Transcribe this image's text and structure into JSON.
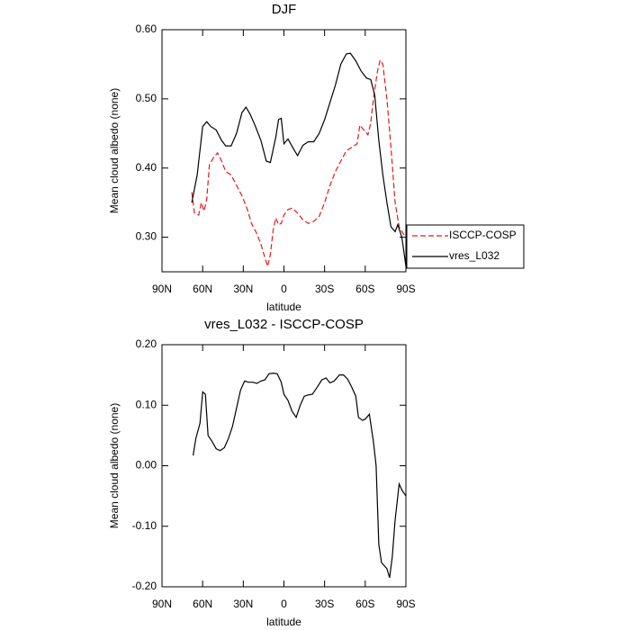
{
  "chart_data": [
    {
      "type": "line",
      "title": "DJF",
      "xlabel": "latitude",
      "ylabel": "Mean cloud albedo (none)",
      "xlim": [
        90,
        -90
      ],
      "ylim": [
        0.25,
        0.6
      ],
      "xticks": [
        {
          "value": 90,
          "label": "90N"
        },
        {
          "value": 60,
          "label": "60N"
        },
        {
          "value": 30,
          "label": "30N"
        },
        0,
        {
          "value": -30,
          "label": "30S"
        },
        {
          "value": -60,
          "label": "60S"
        },
        {
          "value": -90,
          "label": "90S"
        }
      ],
      "yticks": [
        {
          "value": 0.3,
          "label": "0.30"
        },
        {
          "value": 0.4,
          "label": "0.40"
        },
        {
          "value": 0.5,
          "label": "0.50"
        },
        {
          "value": 0.6,
          "label": "0.60"
        }
      ],
      "series": [
        {
          "name": "ISCCP-COSP",
          "color": "#e41a1c",
          "dashed": true,
          "x": [
            68,
            66,
            63,
            61,
            59,
            57,
            55,
            52,
            49,
            46,
            43,
            39,
            35,
            31,
            27,
            24,
            20,
            17,
            14,
            12,
            10,
            8,
            6,
            4,
            2,
            0,
            -3,
            -6,
            -10,
            -14,
            -18,
            -22,
            -26,
            -30,
            -34,
            -38,
            -42,
            -46,
            -50,
            -54,
            -56,
            -59,
            -62,
            -64,
            -66,
            -69,
            -71,
            -73,
            -76,
            -79,
            -82,
            -85,
            -88,
            -90
          ],
          "values": [
            0.365,
            0.335,
            0.332,
            0.35,
            0.338,
            0.355,
            0.405,
            0.415,
            0.422,
            0.41,
            0.395,
            0.39,
            0.375,
            0.36,
            0.34,
            0.32,
            0.305,
            0.29,
            0.27,
            0.258,
            0.275,
            0.31,
            0.328,
            0.318,
            0.32,
            0.332,
            0.34,
            0.342,
            0.335,
            0.325,
            0.32,
            0.323,
            0.33,
            0.35,
            0.375,
            0.395,
            0.41,
            0.425,
            0.43,
            0.435,
            0.462,
            0.455,
            0.448,
            0.465,
            0.5,
            0.54,
            0.556,
            0.55,
            0.5,
            0.43,
            0.35,
            0.315,
            0.305,
            0.3
          ]
        },
        {
          "name": "vres_L032",
          "color": "#000000",
          "dashed": false,
          "x": [
            68,
            64,
            60,
            57,
            54,
            50,
            46,
            43,
            39,
            35,
            31,
            28,
            25,
            21,
            17,
            13,
            10,
            6,
            4,
            2,
            0,
            -3,
            -7,
            -10,
            -14,
            -18,
            -22,
            -26,
            -30,
            -34,
            -38,
            -42,
            -46,
            -49,
            -53,
            -57,
            -61,
            -64,
            -67,
            -70,
            -73,
            -76,
            -79,
            -82,
            -84,
            -87,
            -90
          ],
          "values": [
            0.35,
            0.39,
            0.46,
            0.467,
            0.46,
            0.455,
            0.44,
            0.432,
            0.432,
            0.45,
            0.48,
            0.488,
            0.478,
            0.46,
            0.44,
            0.41,
            0.408,
            0.445,
            0.47,
            0.472,
            0.435,
            0.442,
            0.428,
            0.418,
            0.433,
            0.438,
            0.438,
            0.45,
            0.47,
            0.495,
            0.52,
            0.55,
            0.565,
            0.566,
            0.555,
            0.54,
            0.53,
            0.528,
            0.505,
            0.44,
            0.39,
            0.35,
            0.315,
            0.308,
            0.318,
            0.3,
            0.258
          ]
        }
      ]
    },
    {
      "type": "line",
      "title": "vres_L032 - ISCCP-COSP",
      "xlabel": "latitude",
      "ylabel": "Mean cloud albedo (none)",
      "xlim": [
        90,
        -90
      ],
      "ylim": [
        -0.2,
        0.2
      ],
      "xticks": [
        {
          "value": 90,
          "label": "90N"
        },
        {
          "value": 60,
          "label": "60N"
        },
        {
          "value": 30,
          "label": "30N"
        },
        0,
        {
          "value": -30,
          "label": "30S"
        },
        {
          "value": -60,
          "label": "60S"
        },
        {
          "value": -90,
          "label": "90S"
        }
      ],
      "yticks": [
        {
          "value": -0.2,
          "label": "-0.20"
        },
        {
          "value": -0.1,
          "label": "-0.10"
        },
        {
          "value": 0,
          "label": "0.00"
        },
        {
          "value": 0.1,
          "label": "0.10"
        },
        {
          "value": 0.2,
          "label": "0.20"
        }
      ],
      "series": [
        {
          "color": "#000000",
          "dashed": false,
          "x": [
            67,
            65,
            62,
            60,
            58,
            56,
            53,
            50,
            47,
            44,
            41,
            38,
            35,
            32,
            29,
            26,
            23,
            20,
            17,
            14,
            11,
            8,
            5,
            2,
            0,
            -3,
            -6,
            -9,
            -12,
            -15,
            -18,
            -21,
            -24,
            -28,
            -31,
            -34,
            -37,
            -41,
            -44,
            -47,
            -50,
            -53,
            -55,
            -58,
            -60,
            -63,
            -66,
            -68,
            -70,
            -72,
            -74,
            -76,
            -78,
            -80,
            -82,
            -85,
            -87,
            -90
          ],
          "values": [
            0.017,
            0.045,
            0.07,
            0.122,
            0.118,
            0.05,
            0.04,
            0.028,
            0.025,
            0.03,
            0.045,
            0.065,
            0.095,
            0.125,
            0.14,
            0.138,
            0.138,
            0.136,
            0.14,
            0.142,
            0.152,
            0.153,
            0.152,
            0.138,
            0.118,
            0.108,
            0.09,
            0.08,
            0.1,
            0.115,
            0.117,
            0.118,
            0.128,
            0.142,
            0.145,
            0.137,
            0.14,
            0.15,
            0.15,
            0.143,
            0.13,
            0.115,
            0.08,
            0.075,
            0.077,
            0.085,
            0.04,
            0.0,
            -0.13,
            -0.16,
            -0.165,
            -0.17,
            -0.185,
            -0.15,
            -0.09,
            -0.03,
            -0.04,
            -0.05
          ]
        }
      ]
    }
  ]
}
